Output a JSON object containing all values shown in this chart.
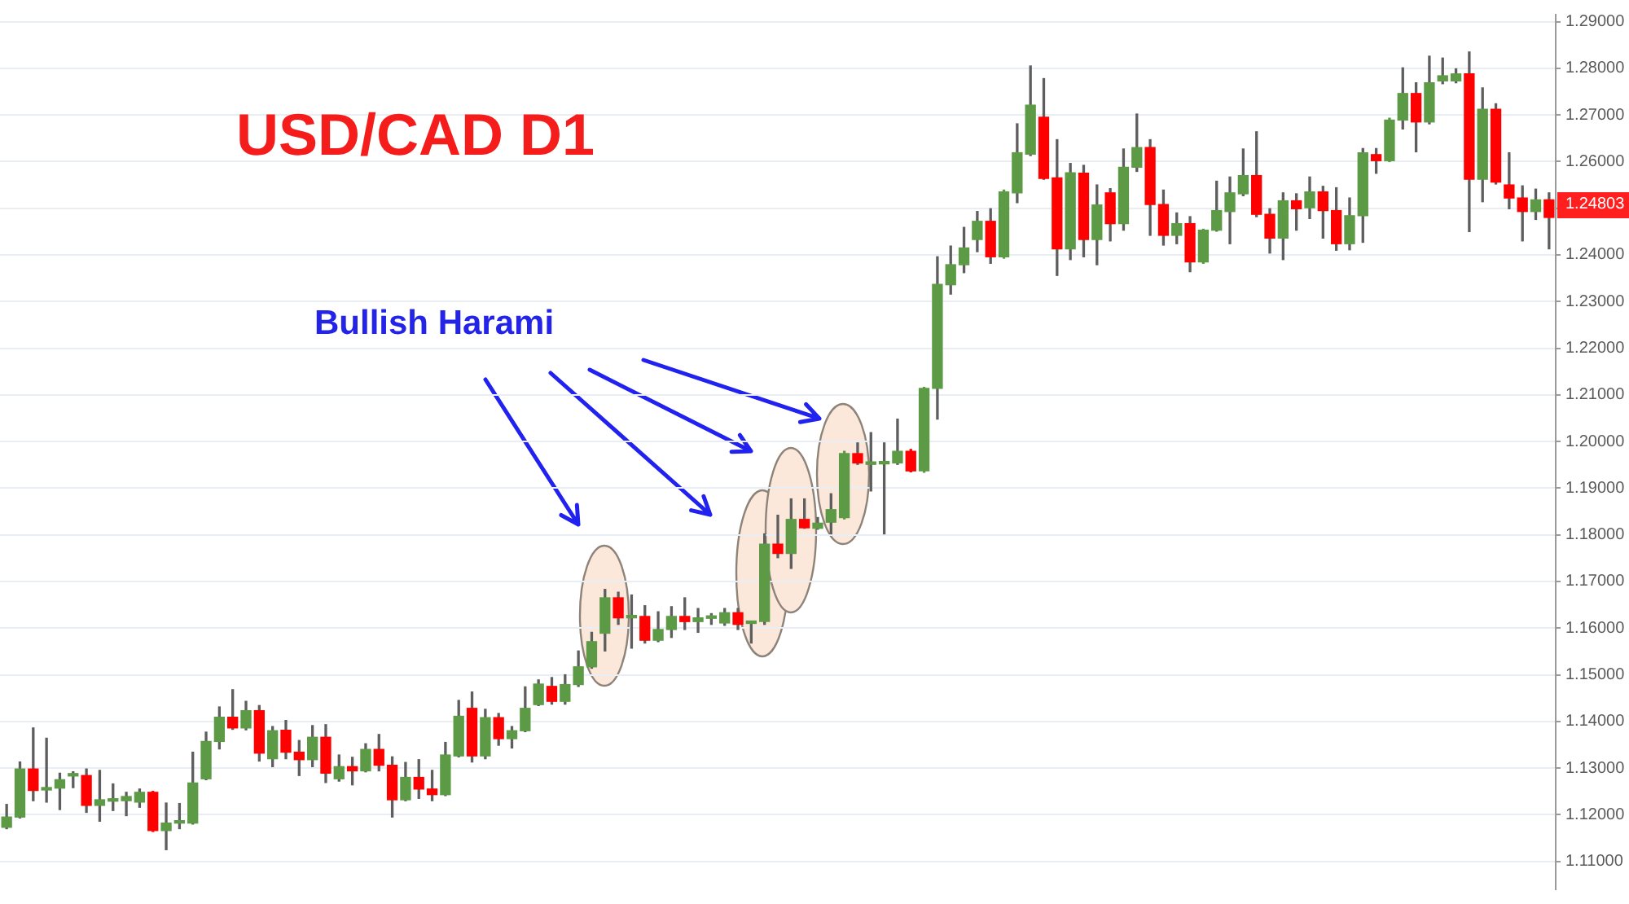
{
  "chart_data": {
    "type": "candlestick",
    "title": "USD/CAD D1",
    "annotations": [
      "Bullish Harami",
      "1.24803"
    ],
    "categories": [
      null,
      null,
      null,
      null,
      null,
      null,
      null,
      null,
      null,
      null,
      null,
      null,
      null,
      null,
      null,
      null,
      null,
      null,
      null,
      null,
      null,
      null,
      null,
      null,
      null,
      null,
      null,
      null,
      null,
      null,
      null,
      null,
      null,
      null,
      null,
      null,
      null,
      null,
      null,
      null,
      null,
      null,
      null,
      null,
      null,
      null,
      null,
      null,
      null,
      null,
      null,
      null,
      null,
      null,
      null,
      null,
      null,
      null,
      null,
      null,
      null,
      null,
      null,
      null,
      null,
      null,
      null,
      null,
      null,
      null,
      null,
      null,
      null,
      null,
      null,
      null,
      null,
      null,
      null,
      null,
      null,
      null,
      null,
      null,
      null,
      null,
      null,
      null,
      null,
      null,
      null,
      null,
      null,
      null,
      null,
      null,
      null,
      null,
      null,
      null,
      null,
      null,
      null,
      null,
      null,
      null,
      null,
      null,
      null,
      null,
      null,
      null,
      null,
      null,
      null,
      null,
      null
    ],
    "ohlc": [
      [
        1.1173,
        1.1222,
        1.117,
        1.1195
      ],
      [
        1.1195,
        1.1313,
        1.1193,
        1.1298
      ],
      [
        1.1298,
        1.1386,
        1.123,
        1.1252
      ],
      [
        1.1253,
        1.1364,
        1.1227,
        1.1256
      ],
      [
        1.1257,
        1.1289,
        1.1211,
        1.1275
      ],
      [
        1.1283,
        1.1292,
        1.1258,
        1.1285
      ],
      [
        1.1284,
        1.1298,
        1.1205,
        1.122
      ],
      [
        1.122,
        1.1295,
        1.1186,
        1.1232
      ],
      [
        1.1229,
        1.1266,
        1.1209,
        1.123
      ],
      [
        1.123,
        1.1248,
        1.1198,
        1.1239
      ],
      [
        1.1227,
        1.1255,
        1.1216,
        1.1248
      ],
      [
        1.1248,
        1.125,
        1.1164,
        1.1166
      ],
      [
        1.1166,
        1.1225,
        1.1125,
        1.1182
      ],
      [
        1.1182,
        1.1224,
        1.117,
        1.1183
      ],
      [
        1.1182,
        1.1334,
        1.118,
        1.1268
      ],
      [
        1.1277,
        1.1377,
        1.1275,
        1.1357
      ],
      [
        1.1357,
        1.1431,
        1.1341,
        1.1409
      ],
      [
        1.1409,
        1.1468,
        1.1383,
        1.1386
      ],
      [
        1.1386,
        1.1443,
        1.1382,
        1.1423
      ],
      [
        1.1423,
        1.1434,
        1.1315,
        1.1332
      ],
      [
        1.132,
        1.1389,
        1.1303,
        1.138
      ],
      [
        1.1381,
        1.1402,
        1.132,
        1.1334
      ],
      [
        1.1334,
        1.1359,
        1.1284,
        1.1318
      ],
      [
        1.1318,
        1.1391,
        1.1303,
        1.1366
      ],
      [
        1.1366,
        1.1393,
        1.1269,
        1.1289
      ],
      [
        1.1277,
        1.1328,
        1.1272,
        1.1303
      ],
      [
        1.1303,
        1.1323,
        1.1264,
        1.1294
      ],
      [
        1.1294,
        1.1352,
        1.1292,
        1.134
      ],
      [
        1.134,
        1.1372,
        1.1294,
        1.1306
      ],
      [
        1.1306,
        1.1324,
        1.1195,
        1.1232
      ],
      [
        1.1232,
        1.1312,
        1.123,
        1.128
      ],
      [
        1.128,
        1.1318,
        1.1235,
        1.1255
      ],
      [
        1.1255,
        1.1295,
        1.123,
        1.1243
      ],
      [
        1.1243,
        1.1355,
        1.1241,
        1.1328
      ],
      [
        1.1326,
        1.1445,
        1.1324,
        1.1411
      ],
      [
        1.1428,
        1.1463,
        1.1313,
        1.1326
      ],
      [
        1.1326,
        1.1426,
        1.132,
        1.1408
      ],
      [
        1.1408,
        1.1417,
        1.1349,
        1.1363
      ],
      [
        1.1363,
        1.1389,
        1.1343,
        1.138
      ],
      [
        1.138,
        1.1474,
        1.1378,
        1.1428
      ],
      [
        1.1436,
        1.1489,
        1.1434,
        1.148
      ],
      [
        1.1475,
        1.1494,
        1.1437,
        1.1443
      ],
      [
        1.1443,
        1.15,
        1.1437,
        1.1479
      ],
      [
        1.1479,
        1.1551,
        1.1475,
        1.1517
      ],
      [
        1.1517,
        1.1591,
        1.1514,
        1.1571
      ],
      [
        1.1589,
        1.1683,
        1.1551,
        1.1665
      ],
      [
        1.1665,
        1.1677,
        1.1608,
        1.1622
      ],
      [
        1.1622,
        1.1671,
        1.1557,
        1.1624
      ],
      [
        1.1625,
        1.1648,
        1.1568,
        1.1574
      ],
      [
        1.1574,
        1.1635,
        1.1571,
        1.1597
      ],
      [
        1.1597,
        1.1646,
        1.158,
        1.1625
      ],
      [
        1.1625,
        1.1665,
        1.1597,
        1.1614
      ],
      [
        1.1614,
        1.1642,
        1.1591,
        1.1622
      ],
      [
        1.1621,
        1.1631,
        1.1608,
        1.1623
      ],
      [
        1.1611,
        1.1642,
        1.1606,
        1.1633
      ],
      [
        1.1633,
        1.1642,
        1.1597,
        1.1608
      ],
      [
        1.161,
        1.1614,
        1.1568,
        1.1611
      ],
      [
        1.1614,
        1.1802,
        1.1608,
        1.178
      ],
      [
        1.178,
        1.1842,
        1.1751,
        1.176
      ],
      [
        1.176,
        1.1877,
        1.1728,
        1.1833
      ],
      [
        1.1833,
        1.1877,
        1.1814,
        1.1815
      ],
      [
        1.1814,
        1.1837,
        1.1812,
        1.1825
      ],
      [
        1.1827,
        1.1888,
        1.1802,
        1.1854
      ],
      [
        1.1837,
        1.1979,
        1.1834,
        1.1974
      ],
      [
        1.1974,
        1.1997,
        1.1951,
        1.1954
      ],
      [
        1.1951,
        1.2019,
        1.1894,
        1.1952
      ],
      [
        1.1952,
        1.1997,
        1.1802,
        1.1954
      ],
      [
        1.1954,
        1.2048,
        1.1951,
        1.1979
      ],
      [
        1.1979,
        1.1983,
        1.1935,
        1.1937
      ],
      [
        1.1937,
        1.2116,
        1.1934,
        1.2114
      ],
      [
        1.2114,
        1.2396,
        1.2048,
        1.2337
      ],
      [
        1.2336,
        1.2419,
        1.2316,
        1.2379
      ],
      [
        1.2379,
        1.2459,
        1.2362,
        1.2415
      ],
      [
        1.2433,
        1.2493,
        1.2407,
        1.2472
      ],
      [
        1.2472,
        1.2499,
        1.2382,
        1.2396
      ],
      [
        1.2396,
        1.2539,
        1.2393,
        1.2535
      ],
      [
        1.2533,
        1.2681,
        1.2512,
        1.2619
      ],
      [
        1.2616,
        1.2805,
        1.2613,
        1.2721
      ],
      [
        1.2695,
        1.2778,
        1.2562,
        1.2564
      ],
      [
        1.2565,
        1.2647,
        1.2356,
        1.2413
      ],
      [
        1.2413,
        1.2596,
        1.239,
        1.2576
      ],
      [
        1.2575,
        1.2592,
        1.2396,
        1.2433
      ],
      [
        1.2433,
        1.255,
        1.2379,
        1.2507
      ],
      [
        1.2533,
        1.2542,
        1.243,
        1.2467
      ],
      [
        1.2467,
        1.2627,
        1.2453,
        1.2588
      ],
      [
        1.2588,
        1.2702,
        1.2579,
        1.263
      ],
      [
        1.263,
        1.2647,
        1.2442,
        1.2508
      ],
      [
        1.2508,
        1.2539,
        1.2421,
        1.2442
      ],
      [
        1.2442,
        1.249,
        1.2424,
        1.2467
      ],
      [
        1.2467,
        1.2482,
        1.2364,
        1.2385
      ],
      [
        1.2385,
        1.2455,
        1.2382,
        1.2453
      ],
      [
        1.2453,
        1.2558,
        1.2451,
        1.2495
      ],
      [
        1.2493,
        1.2567,
        1.2424,
        1.2533
      ],
      [
        1.2531,
        1.2627,
        1.2527,
        1.257
      ],
      [
        1.257,
        1.2664,
        1.2482,
        1.2487
      ],
      [
        1.2487,
        1.2499,
        1.2404,
        1.2436
      ],
      [
        1.2436,
        1.2533,
        1.239,
        1.2516
      ],
      [
        1.2516,
        1.2531,
        1.2453,
        1.2499
      ],
      [
        1.2501,
        1.2567,
        1.2478,
        1.2535
      ],
      [
        1.2535,
        1.2547,
        1.2436,
        1.2495
      ],
      [
        1.2495,
        1.2544,
        1.241,
        1.2424
      ],
      [
        1.2424,
        1.2522,
        1.2411,
        1.2484
      ],
      [
        1.2484,
        1.2628,
        1.2427,
        1.2619
      ],
      [
        1.2615,
        1.2628,
        1.2575,
        1.2602
      ],
      [
        1.2602,
        1.2693,
        1.26,
        1.2689
      ],
      [
        1.2689,
        1.2801,
        1.267,
        1.2746
      ],
      [
        1.2746,
        1.2769,
        1.2621,
        1.2685
      ],
      [
        1.2685,
        1.2826,
        1.2681,
        1.2769
      ],
      [
        1.2773,
        1.2822,
        1.2767,
        1.2784
      ],
      [
        1.2773,
        1.2799,
        1.2769,
        1.2788
      ],
      [
        1.2788,
        1.2835,
        1.245,
        1.2562
      ],
      [
        1.2562,
        1.2758,
        1.2514,
        1.2712
      ],
      [
        1.2712,
        1.2724,
        1.2552,
        1.2556
      ],
      [
        1.255,
        1.2619,
        1.2499,
        1.2522
      ],
      [
        1.2522,
        1.2548,
        1.243,
        1.2493
      ],
      [
        1.2493,
        1.2541,
        1.2476,
        1.2518
      ],
      [
        1.2518,
        1.2533,
        1.2413,
        1.24803
      ]
    ],
    "colors": [
      "#5c9a46",
      "#5c9a46",
      "#ff0000",
      "#5c9a46",
      "#5c9a46",
      "#5c9a46",
      "#ff0000",
      "#5c9a46",
      "#5c9a46",
      "#5c9a46",
      "#5c9a46",
      "#ff0000",
      "#5c9a46",
      "#5c9a46",
      "#5c9a46",
      "#5c9a46",
      "#5c9a46",
      "#ff0000",
      "#5c9a46",
      "#ff0000",
      "#5c9a46",
      "#ff0000",
      "#ff0000",
      "#5c9a46",
      "#ff0000",
      "#5c9a46",
      "#ff0000",
      "#5c9a46",
      "#ff0000",
      "#ff0000",
      "#5c9a46",
      "#ff0000",
      "#ff0000",
      "#5c9a46",
      "#5c9a46",
      "#ff0000",
      "#5c9a46",
      "#ff0000",
      "#5c9a46",
      "#5c9a46",
      "#5c9a46",
      "#ff0000",
      "#5c9a46",
      "#5c9a46",
      "#5c9a46",
      "#5c9a46",
      "#ff0000",
      "#5c9a46",
      "#ff0000",
      "#5c9a46",
      "#5c9a46",
      "#ff0000",
      "#5c9a46",
      "#5c9a46",
      "#5c9a46",
      "#ff0000",
      "#5c9a46",
      "#5c9a46",
      "#ff0000",
      "#5c9a46",
      "#ff0000",
      "#5c9a46",
      "#5c9a46",
      "#5c9a46",
      "#ff0000",
      "#5c9a46",
      "#5c9a46",
      "#5c9a46",
      "#ff0000",
      "#5c9a46",
      "#5c9a46",
      "#5c9a46",
      "#5c9a46",
      "#5c9a46",
      "#ff0000",
      "#5c9a46",
      "#5c9a46",
      "#5c9a46",
      "#ff0000",
      "#ff0000",
      "#5c9a46",
      "#ff0000",
      "#5c9a46",
      "#ff0000",
      "#5c9a46",
      "#5c9a46",
      "#ff0000",
      "#ff0000",
      "#5c9a46",
      "#ff0000",
      "#5c9a46",
      "#5c9a46",
      "#5c9a46",
      "#5c9a46",
      "#ff0000",
      "#ff0000",
      "#5c9a46",
      "#ff0000",
      "#5c9a46",
      "#ff0000",
      "#ff0000",
      "#5c9a46",
      "#5c9a46",
      "#ff0000",
      "#5c9a46",
      "#5c9a46",
      "#ff0000",
      "#5c9a46",
      "#5c9a46",
      "#5c9a46",
      "#ff0000",
      "#5c9a46",
      "#ff0000",
      "#ff0000",
      "#ff0000",
      "#5c9a46",
      "#ff0000"
    ],
    "ylim": [
      1.104,
      1.2915
    ],
    "yticks": [
      {
        "value": 1.11,
        "label": "1.11000"
      },
      {
        "value": 1.12,
        "label": "1.12000"
      },
      {
        "value": 1.13,
        "label": "1.13000"
      },
      {
        "value": 1.14,
        "label": "1.14000"
      },
      {
        "value": 1.15,
        "label": "1.15000"
      },
      {
        "value": 1.16,
        "label": "1.16000"
      },
      {
        "value": 1.17,
        "label": "1.17000"
      },
      {
        "value": 1.18,
        "label": "1.18000"
      },
      {
        "value": 1.19,
        "label": "1.19000"
      },
      {
        "value": 1.2,
        "label": "1.20000"
      },
      {
        "value": 1.21,
        "label": "1.21000"
      },
      {
        "value": 1.22,
        "label": "1.22000"
      },
      {
        "value": 1.23,
        "label": "1.23000"
      },
      {
        "value": 1.24,
        "label": "1.24000"
      },
      {
        "value": 1.25,
        "label": null
      },
      {
        "value": 1.26,
        "label": "1.26000"
      },
      {
        "value": 1.27,
        "label": "1.27000"
      },
      {
        "value": 1.28,
        "label": "1.28000"
      },
      {
        "value": 1.29,
        "label": "1.29000"
      }
    ],
    "grid": "y",
    "tick_labels": "y"
  }
}
